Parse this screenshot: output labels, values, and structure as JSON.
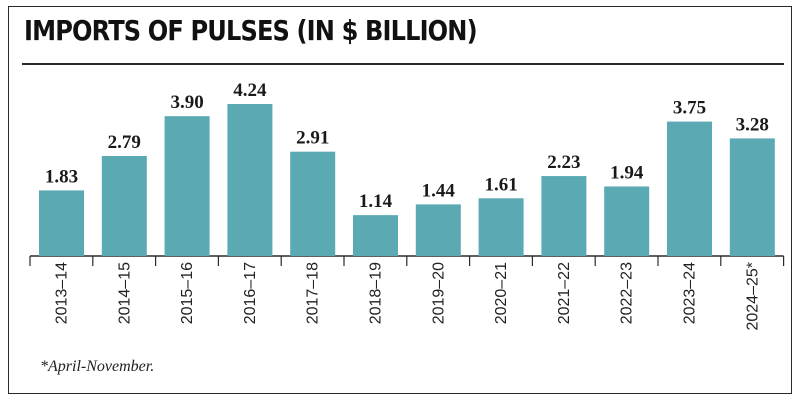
{
  "header": {
    "title": "IMPORTS OF PULSES (IN $ BILLION)"
  },
  "footnote": "*April-November.",
  "colors": {
    "bar": "#5aa9b3",
    "axis": "#2a2a2a",
    "text": "#1a1a1a"
  },
  "chart_data": {
    "type": "bar",
    "title": "IMPORTS OF PULSES (IN $ BILLION)",
    "xlabel": "",
    "ylabel": "",
    "categories": [
      "2013–14",
      "2014–15",
      "2015–16",
      "2016–17",
      "2017–18",
      "2018–19",
      "2019–20",
      "2020–21",
      "2021–22",
      "2022–23",
      "2023–24",
      "2024–25*"
    ],
    "values": [
      1.83,
      2.79,
      3.9,
      4.24,
      2.91,
      1.14,
      1.44,
      1.61,
      2.23,
      1.94,
      3.75,
      3.28
    ],
    "value_labels": [
      "1.83",
      "2.79",
      "3.90",
      "4.24",
      "2.91",
      "1.14",
      "1.44",
      "1.61",
      "2.23",
      "1.94",
      "3.75",
      "3.28"
    ],
    "ylim": [
      0,
      4.24
    ],
    "grid": false,
    "legend": "none"
  }
}
